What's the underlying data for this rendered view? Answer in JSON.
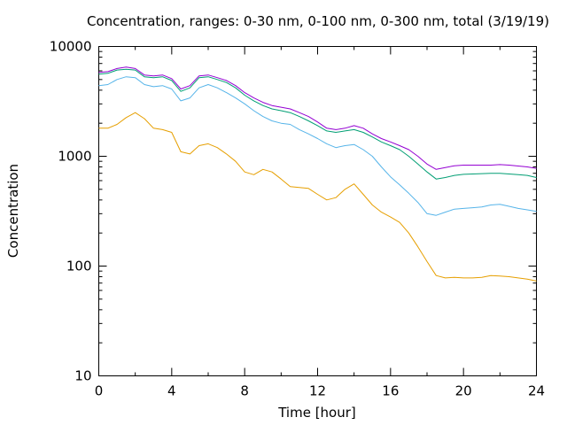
{
  "chart_data": {
    "type": "line",
    "title": "Concentration, ranges: 0-30 nm, 0-100 nm, 0-300 nm, total (3/19/19)",
    "xlabel": "Time [hour]",
    "ylabel": "Concentration",
    "xlim": [
      0,
      24
    ],
    "ylim": [
      10,
      10000
    ],
    "y_scale": "log",
    "grid": false,
    "legend": "none",
    "x_ticks": [
      0,
      4,
      8,
      12,
      16,
      20,
      24
    ],
    "x_tick_labels": [
      "0",
      "4",
      "8",
      "12",
      "16",
      "20",
      "24"
    ],
    "y_ticks": [
      10,
      100,
      1000,
      10000
    ],
    "y_tick_labels": [
      "10",
      "100",
      "1000",
      "10000"
    ],
    "x": [
      0,
      0.5,
      1,
      1.5,
      2,
      2.5,
      3,
      3.5,
      4,
      4.5,
      5,
      5.5,
      6,
      6.5,
      7,
      7.5,
      8,
      8.5,
      9,
      9.5,
      10,
      10.5,
      11,
      11.5,
      12,
      12.5,
      13,
      13.5,
      14,
      14.5,
      15,
      15.5,
      16,
      16.5,
      17,
      17.5,
      18,
      18.5,
      19,
      19.5,
      20,
      20.5,
      21,
      21.5,
      22,
      22.5,
      23,
      23.5,
      24
    ],
    "series": [
      {
        "color": "#e69f00",
        "values": [
          1800,
          1800,
          1950,
          2250,
          2500,
          2200,
          1800,
          1750,
          1650,
          1100,
          1050,
          1250,
          1300,
          1200,
          1050,
          900,
          720,
          680,
          760,
          720,
          620,
          530,
          520,
          510,
          450,
          400,
          420,
          500,
          560,
          450,
          360,
          310,
          280,
          250,
          200,
          150,
          110,
          82,
          78,
          79,
          78,
          78,
          79,
          82,
          81,
          80,
          78,
          76,
          73
        ]
      },
      {
        "color": "#56b4e9",
        "values": [
          4400,
          4500,
          5000,
          5300,
          5200,
          4500,
          4300,
          4400,
          4100,
          3200,
          3400,
          4200,
          4500,
          4200,
          3800,
          3400,
          3000,
          2600,
          2300,
          2100,
          2000,
          1950,
          1750,
          1600,
          1450,
          1300,
          1200,
          1250,
          1280,
          1150,
          1000,
          800,
          650,
          550,
          460,
          380,
          300,
          290,
          310,
          330,
          335,
          340,
          345,
          360,
          365,
          350,
          335,
          325,
          315
        ]
      },
      {
        "color": "#009e73",
        "values": [
          5600,
          5700,
          6100,
          6200,
          6100,
          5300,
          5200,
          5300,
          4900,
          3900,
          4200,
          5200,
          5300,
          5000,
          4700,
          4200,
          3600,
          3200,
          2900,
          2700,
          2600,
          2500,
          2300,
          2100,
          1900,
          1700,
          1650,
          1700,
          1750,
          1650,
          1500,
          1350,
          1250,
          1150,
          1000,
          850,
          720,
          620,
          640,
          670,
          685,
          690,
          695,
          700,
          700,
          690,
          680,
          670,
          640
        ]
      },
      {
        "color": "#9400d3",
        "values": [
          5800,
          5900,
          6300,
          6500,
          6300,
          5500,
          5400,
          5500,
          5100,
          4100,
          4400,
          5400,
          5500,
          5200,
          4900,
          4400,
          3800,
          3400,
          3100,
          2900,
          2800,
          2700,
          2500,
          2300,
          2050,
          1800,
          1750,
          1800,
          1900,
          1800,
          1600,
          1450,
          1350,
          1250,
          1150,
          1000,
          850,
          760,
          790,
          820,
          830,
          830,
          830,
          830,
          840,
          830,
          815,
          800,
          775
        ]
      }
    ]
  }
}
